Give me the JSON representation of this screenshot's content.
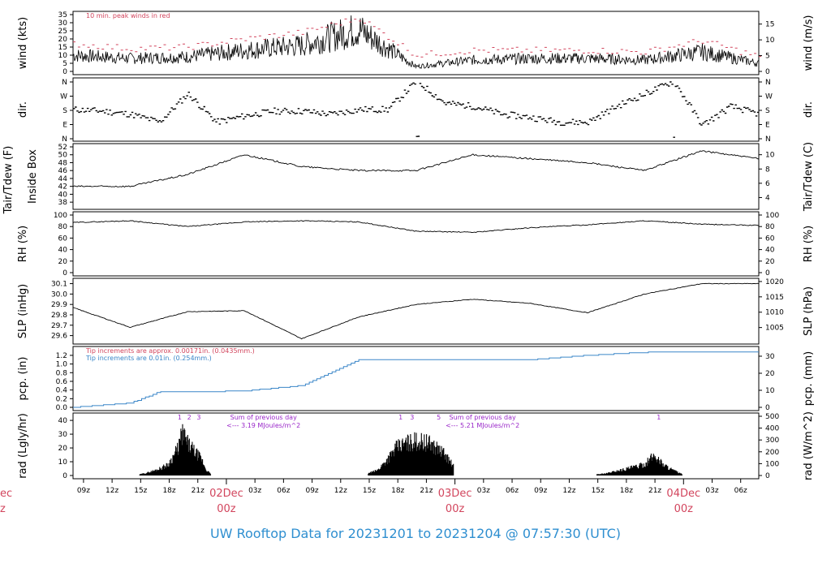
{
  "footer": "UW Rooftop Data for 20231201  to  20231204 @ 07:57:30  (UTC)",
  "colors": {
    "black": "#000000",
    "red": "#d2455d",
    "blue": "#3a86c8",
    "purple": "#9a27c9",
    "footer": "#2f8fd0"
  },
  "chart_data": [
    {
      "type": "line",
      "id": "wind",
      "ylabel_left": "wind (kts)",
      "ylabel_right": "wind (m/s)",
      "ylim": [
        0,
        35
      ],
      "yticks_left": [
        0,
        5,
        10,
        15,
        20,
        25,
        30,
        35
      ],
      "ylim_right": [
        0,
        18
      ],
      "yticks_right": [
        0,
        5,
        10,
        15
      ],
      "annotation": "10 min. peak winds in red",
      "x": [
        0,
        6,
        12,
        18,
        24,
        30,
        36,
        42,
        48,
        54,
        60,
        66,
        72
      ],
      "series": [
        {
          "values": [
            10,
            8,
            9,
            13,
            16,
            26,
            3,
            7,
            8,
            8,
            7,
            12,
            5
          ]
        },
        {
          "values": [
            17,
            14,
            15,
            20,
            24,
            33,
            10,
            13,
            13,
            13,
            12,
            19,
            9
          ]
        }
      ]
    },
    {
      "type": "scatter",
      "id": "dir",
      "ylabel_left": "dir.",
      "ylabel_right": "dir.",
      "yticks_left": [
        "N",
        "W",
        "S",
        "E",
        "N"
      ],
      "yticks_right": [
        "N",
        "W",
        "S",
        "E",
        "N"
      ],
      "x": [
        0,
        3,
        6,
        9,
        12,
        15,
        18,
        21,
        24,
        27,
        30,
        33,
        36,
        39,
        42,
        45,
        48,
        51,
        54,
        57,
        60,
        63,
        66,
        69,
        72
      ],
      "values": [
        180,
        170,
        150,
        100,
        280,
        100,
        140,
        170,
        170,
        150,
        180,
        180,
        360,
        220,
        200,
        150,
        130,
        100,
        100,
        200,
        280,
        360,
        80,
        200,
        150
      ]
    },
    {
      "type": "line",
      "id": "temp",
      "ylabel_left": "Tair/Tdew (F)",
      "ylabel_left2": "Inside Box",
      "ylabel_right": "Tair/Tdew (C)",
      "ylim": [
        37,
        52
      ],
      "yticks_left": [
        38,
        40,
        42,
        44,
        46,
        48,
        50,
        52
      ],
      "ylim_right": [
        2.8,
        11.1
      ],
      "yticks_right": [
        4,
        6,
        8,
        10
      ],
      "x": [
        0,
        6,
        12,
        18,
        24,
        30,
        36,
        42,
        48,
        54,
        60,
        66,
        72
      ],
      "values": [
        42,
        42,
        45,
        50,
        47,
        46,
        46,
        50,
        49,
        48,
        46,
        51,
        49
      ]
    },
    {
      "type": "line",
      "id": "rh",
      "ylabel_left": "RH (%)",
      "ylabel_right": "RH (%)",
      "ylim": [
        0,
        100
      ],
      "yticks_left": [
        0,
        20,
        40,
        60,
        80,
        100
      ],
      "yticks_right": [
        0,
        20,
        40,
        60,
        80,
        100
      ],
      "x": [
        0,
        6,
        12,
        18,
        24,
        30,
        36,
        42,
        48,
        54,
        60,
        66,
        72
      ],
      "values": [
        87,
        90,
        80,
        88,
        90,
        88,
        72,
        70,
        78,
        83,
        90,
        84,
        82
      ]
    },
    {
      "type": "line",
      "id": "slp",
      "ylabel_left": "SLP (inHg)",
      "ylabel_right": "SLP (hPa)",
      "ylim": [
        29.55,
        30.12
      ],
      "yticks_left": [
        "29.6",
        "29.7",
        "29.8",
        "29.9",
        "30.0",
        "30.1"
      ],
      "yticks_right": [
        1005,
        1010,
        1015,
        1020
      ],
      "x": [
        0,
        6,
        12,
        18,
        24,
        30,
        36,
        42,
        48,
        54,
        60,
        66,
        72
      ],
      "values": [
        29.87,
        29.68,
        29.83,
        29.84,
        29.57,
        29.78,
        29.9,
        29.95,
        29.91,
        29.82,
        30.0,
        30.1,
        30.1
      ]
    },
    {
      "type": "line",
      "id": "pcp",
      "ylabel_left": "pcp. (in)",
      "ylabel_right": "pcp. (mm)",
      "ylim": [
        0,
        1.33
      ],
      "yticks_left": [
        "0.0",
        "0.2",
        "0.4",
        "0.6",
        "0.8",
        "1.0",
        "1.2"
      ],
      "ylim_right": [
        0,
        33.8
      ],
      "yticks_right": [
        0,
        10,
        20,
        30
      ],
      "annotation_red": "Tip increments are approx. 0.00171in. (0.0435mm.)",
      "annotation_blue": "Tip increments are 0.01in. (0.254mm.)",
      "x": [
        0,
        6,
        9,
        12,
        18,
        24,
        27,
        30,
        33,
        36,
        42,
        48,
        54,
        60,
        66,
        72
      ],
      "values": [
        0.0,
        0.1,
        0.35,
        0.35,
        0.38,
        0.5,
        0.8,
        1.1,
        1.1,
        1.1,
        1.1,
        1.1,
        1.2,
        1.27,
        1.27,
        1.27
      ]
    },
    {
      "type": "bar",
      "id": "rad",
      "ylabel_left": "rad (Lgly/hr)",
      "ylabel_right": "rad (W/m^2)",
      "ylim": [
        0,
        43
      ],
      "yticks_left": [
        0,
        10,
        20,
        30,
        40
      ],
      "ylim_right": [
        0,
        500
      ],
      "yticks_right": [
        0,
        100,
        200,
        300,
        400,
        500
      ],
      "day_markers": [
        {
          "x": 11.2,
          "label": "1"
        },
        {
          "x": 12.2,
          "label": "2"
        },
        {
          "x": 13.2,
          "label": "3"
        },
        {
          "x": 34.4,
          "label": "1"
        },
        {
          "x": 35.6,
          "label": "3"
        },
        {
          "x": 38.4,
          "label": "5"
        },
        {
          "x": 61.5,
          "label": "1"
        }
      ],
      "day_markers_faint": [
        "'",
        "'",
        "'"
      ],
      "summaries": [
        {
          "x": 20,
          "line1": "Sum of previous day",
          "line2": "<--- 3.19 MJoules/m^2"
        },
        {
          "x": 43,
          "line1": "Sum of previous day",
          "line2": "<--- 5.21 MJoules/m^2"
        }
      ],
      "x": [
        7,
        8,
        9,
        10,
        11,
        11.5,
        12,
        12.5,
        13,
        13.5,
        14,
        14.5,
        31,
        32,
        33,
        34,
        35,
        36,
        37,
        38,
        39,
        40,
        55,
        56,
        57,
        58,
        59,
        60,
        61,
        62,
        63,
        64
      ],
      "values": [
        1,
        3,
        6,
        10,
        25,
        40,
        30,
        25,
        20,
        15,
        5,
        1,
        2,
        5,
        15,
        26,
        30,
        32,
        31,
        27,
        20,
        8,
        1,
        2,
        4,
        6,
        8,
        10,
        19,
        10,
        5,
        1
      ]
    }
  ],
  "xaxis": {
    "ticks": [
      "09z",
      "12z",
      "15z",
      "18z",
      "21z",
      "03z",
      "06z",
      "09z",
      "12z",
      "15z",
      "18z",
      "21z",
      "03z",
      "06z",
      "09z",
      "12z",
      "15z",
      "18z",
      "21z",
      "03z",
      "06z"
    ],
    "day_labels": [
      {
        "top": "02Dec",
        "bottom": "00z"
      },
      {
        "top": "03Dec",
        "bottom": "00z"
      },
      {
        "top": "04Dec",
        "bottom": "00z"
      }
    ],
    "cut_day_label": {
      "top": "ec",
      "bottom": "z"
    }
  }
}
